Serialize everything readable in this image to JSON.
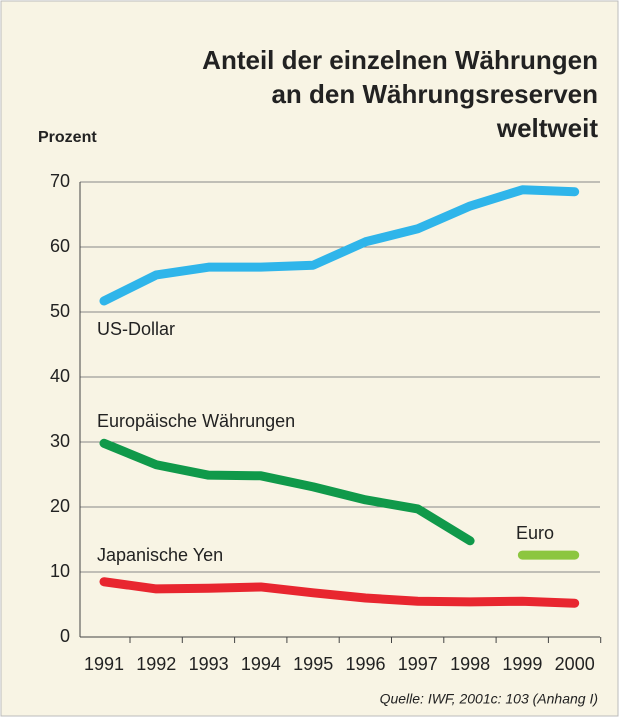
{
  "chart_data": {
    "type": "line",
    "title": [
      "Anteil der einzelnen Währungen",
      "an den Währungsreserven",
      "weltweit"
    ],
    "ylabel": "Prozent",
    "source": "Quelle: IWF, 2001c: 103 (Anhang I)",
    "categories": [
      "1991",
      "1992",
      "1993",
      "1994",
      "1995",
      "1996",
      "1997",
      "1998",
      "1999",
      "2000"
    ],
    "series": [
      {
        "name": "US-Dollar",
        "color": "#2fb5ea",
        "values": [
          51.7,
          55.7,
          56.9,
          56.9,
          57.2,
          60.8,
          62.8,
          66.3,
          68.8,
          68.5
        ]
      },
      {
        "name": "Europäische Währungen",
        "color": "#10994a",
        "values": [
          29.8,
          26.5,
          24.9,
          24.8,
          23.1,
          21.1,
          19.7,
          14.8,
          null,
          null
        ]
      },
      {
        "name": "Euro",
        "color": "#8cc63f",
        "values": [
          null,
          null,
          null,
          null,
          null,
          null,
          null,
          null,
          12.6,
          12.6
        ]
      },
      {
        "name": "Japanische Yen",
        "color": "#e8262f",
        "values": [
          8.5,
          7.4,
          7.5,
          7.7,
          6.8,
          6.0,
          5.5,
          5.4,
          5.5,
          5.2
        ]
      }
    ],
    "ylim": [
      0,
      70
    ],
    "yticks": [
      0,
      10,
      20,
      30,
      40,
      50,
      60,
      70
    ],
    "grid": true
  }
}
